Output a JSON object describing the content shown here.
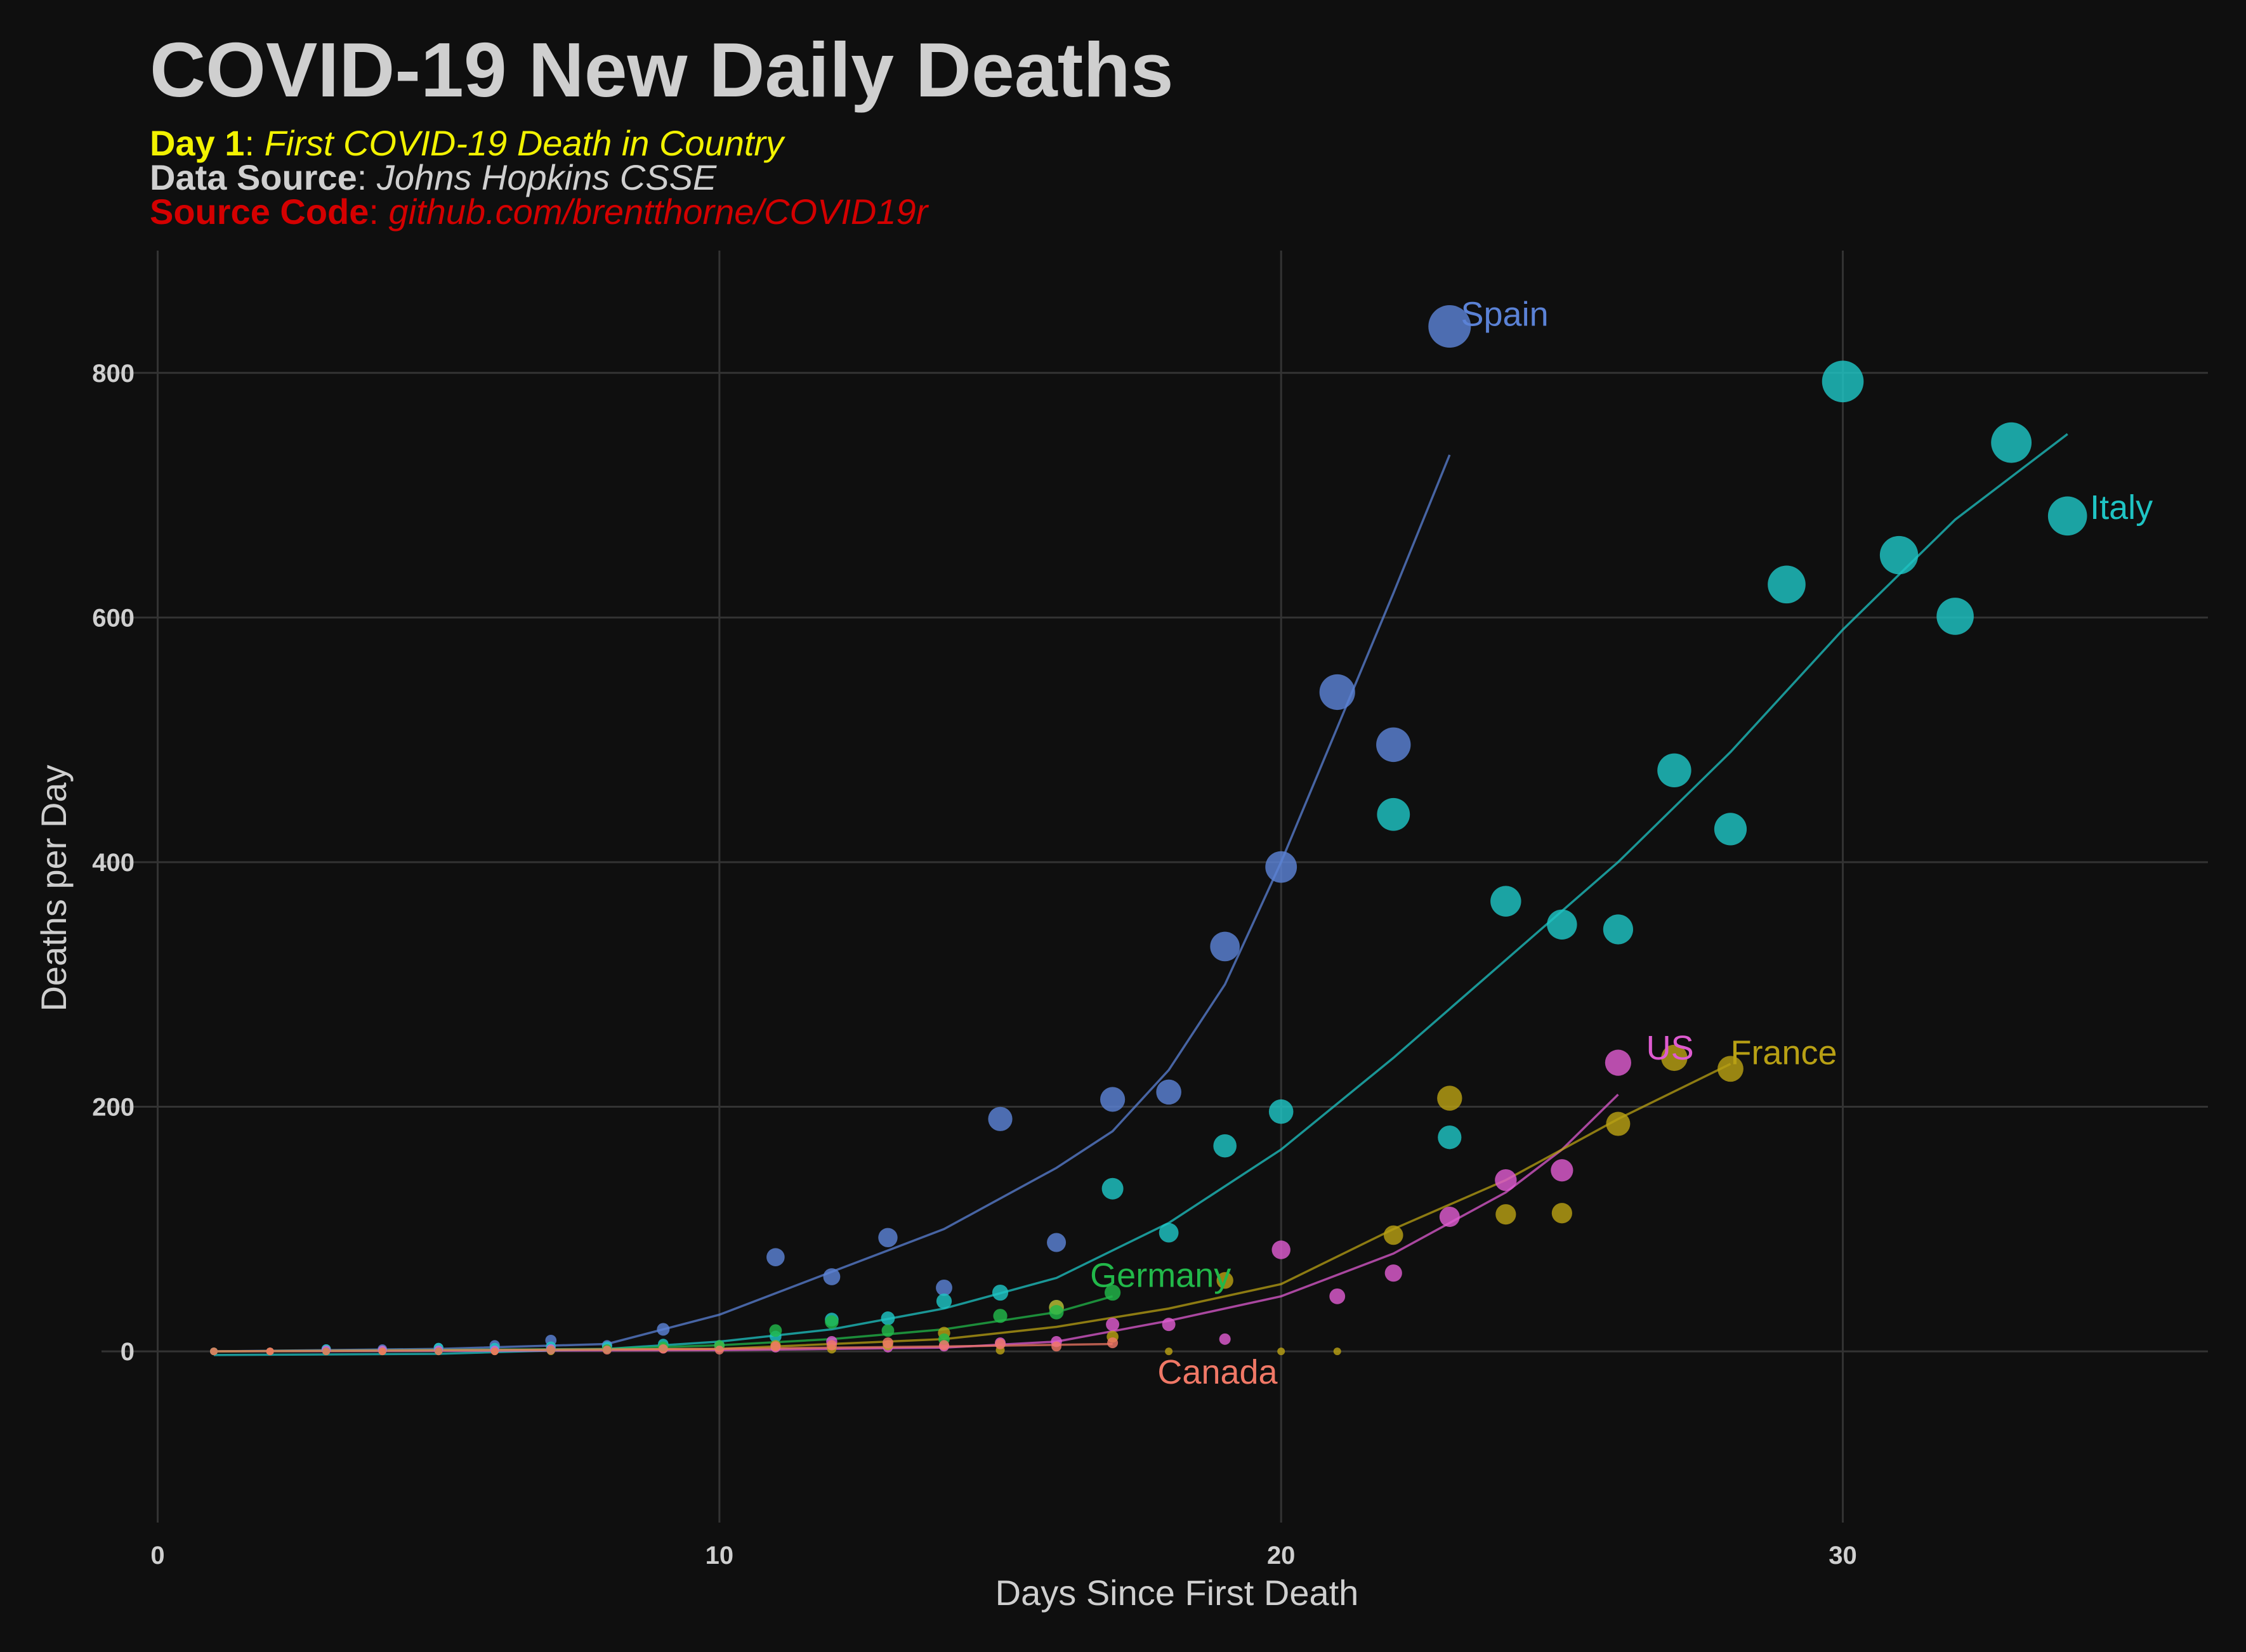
{
  "title": "COVID-19 New Daily Deaths",
  "subtitle": {
    "day1_label": "Day 1",
    "day1_text": "First COVID-19 Death in Country",
    "source_label": "Data Source",
    "source_text": "Johns Hopkins CSSE",
    "code_label": "Source Code",
    "code_text": "github.com/brentthorne/COVID19r"
  },
  "colors": {
    "background": "#0f0f0f",
    "grid": "#333333",
    "title": "#cfcfcf",
    "day1": "#f2f200",
    "code": "#d40000"
  },
  "chart_data": {
    "type": "scatter",
    "xlabel": "Days Since First Death",
    "ylabel": "Deaths per Day",
    "xlim": [
      -1,
      36.5
    ],
    "ylim": [
      -140,
      900
    ],
    "xticks": [
      0,
      10,
      20,
      30
    ],
    "yticks": [
      0,
      200,
      400,
      600,
      800
    ],
    "grid": true,
    "legend": "direct labels",
    "series": [
      {
        "name": "Spain",
        "color": "#5b82d6",
        "points": [
          [
            1,
            0
          ],
          [
            2,
            0
          ],
          [
            3,
            2
          ],
          [
            4,
            2
          ],
          [
            5,
            3
          ],
          [
            6,
            5
          ],
          [
            7,
            9
          ],
          [
            8,
            5
          ],
          [
            9,
            18
          ],
          [
            10,
            5
          ],
          [
            11,
            77
          ],
          [
            12,
            61
          ],
          [
            13,
            93
          ],
          [
            14,
            52
          ],
          [
            15,
            190
          ],
          [
            16,
            89
          ],
          [
            17,
            206
          ],
          [
            18,
            212
          ],
          [
            19,
            331
          ],
          [
            20,
            396
          ],
          [
            21,
            539
          ],
          [
            22,
            496
          ],
          [
            23,
            838
          ]
        ],
        "trend": [
          [
            1,
            0
          ],
          [
            5,
            2
          ],
          [
            8,
            6
          ],
          [
            10,
            30
          ],
          [
            12,
            65
          ],
          [
            14,
            100
          ],
          [
            16,
            150
          ],
          [
            17,
            180
          ],
          [
            18,
            230
          ],
          [
            19,
            300
          ],
          [
            20,
            400
          ],
          [
            21,
            510
          ],
          [
            22,
            620
          ],
          [
            23,
            733
          ]
        ],
        "label_at": [
          23.2,
          848
        ]
      },
      {
        "name": "Italy",
        "color": "#1fc4c4",
        "points": [
          [
            1,
            0
          ],
          [
            2,
            0
          ],
          [
            3,
            2
          ],
          [
            4,
            1
          ],
          [
            5,
            3
          ],
          [
            6,
            3
          ],
          [
            7,
            4
          ],
          [
            8,
            4
          ],
          [
            9,
            6
          ],
          [
            10,
            5
          ],
          [
            11,
            12
          ],
          [
            12,
            26
          ],
          [
            13,
            27
          ],
          [
            14,
            41
          ],
          [
            15,
            48
          ],
          [
            16,
            36
          ],
          [
            17,
            133
          ],
          [
            18,
            97
          ],
          [
            19,
            168
          ],
          [
            20,
            196
          ],
          [
            22,
            439
          ],
          [
            23,
            175
          ],
          [
            24,
            368
          ],
          [
            25,
            349
          ],
          [
            26,
            345
          ],
          [
            27,
            475
          ],
          [
            28,
            427
          ],
          [
            29,
            627
          ],
          [
            30,
            793
          ],
          [
            31,
            651
          ],
          [
            32,
            601
          ],
          [
            33,
            743
          ],
          [
            34,
            683
          ]
        ],
        "trend": [
          [
            1,
            -3
          ],
          [
            5,
            -2
          ],
          [
            8,
            2
          ],
          [
            10,
            8
          ],
          [
            12,
            18
          ],
          [
            14,
            35
          ],
          [
            16,
            60
          ],
          [
            18,
            105
          ],
          [
            20,
            165
          ],
          [
            22,
            240
          ],
          [
            24,
            320
          ],
          [
            26,
            400
          ],
          [
            28,
            490
          ],
          [
            30,
            590
          ],
          [
            32,
            680
          ],
          [
            34,
            750
          ]
        ],
        "label_at": [
          34.4,
          690
        ]
      },
      {
        "name": "US",
        "color": "#de5bd0",
        "points": [
          [
            1,
            0
          ],
          [
            2,
            0
          ],
          [
            3,
            1
          ],
          [
            4,
            1
          ],
          [
            5,
            1
          ],
          [
            6,
            1
          ],
          [
            7,
            2
          ],
          [
            8,
            2
          ],
          [
            9,
            2
          ],
          [
            10,
            3
          ],
          [
            11,
            3
          ],
          [
            12,
            8
          ],
          [
            13,
            3
          ],
          [
            14,
            4
          ],
          [
            15,
            7
          ],
          [
            16,
            8
          ],
          [
            17,
            22
          ],
          [
            18,
            22
          ],
          [
            19,
            10
          ],
          [
            20,
            83
          ],
          [
            21,
            45
          ],
          [
            22,
            64
          ],
          [
            23,
            110
          ],
          [
            24,
            140
          ],
          [
            25,
            148
          ],
          [
            26,
            236
          ]
        ],
        "trend": [
          [
            1,
            0
          ],
          [
            10,
            1
          ],
          [
            14,
            3
          ],
          [
            16,
            8
          ],
          [
            18,
            25
          ],
          [
            20,
            45
          ],
          [
            22,
            80
          ],
          [
            24,
            130
          ],
          [
            25,
            165
          ],
          [
            26,
            210
          ]
        ],
        "label_at": [
          26.5,
          248
        ]
      },
      {
        "name": "France",
        "color": "#b8a014",
        "points": [
          [
            1,
            0
          ],
          [
            2,
            0
          ],
          [
            3,
            0
          ],
          [
            4,
            0
          ],
          [
            5,
            0
          ],
          [
            6,
            0
          ],
          [
            7,
            0
          ],
          [
            8,
            2
          ],
          [
            9,
            3
          ],
          [
            10,
            4
          ],
          [
            11,
            5
          ],
          [
            12,
            2
          ],
          [
            13,
            5
          ],
          [
            14,
            15
          ],
          [
            15,
            1
          ],
          [
            16,
            36
          ],
          [
            17,
            12
          ],
          [
            18,
            0
          ],
          [
            19,
            58
          ],
          [
            20,
            0
          ],
          [
            21,
            0
          ],
          [
            22,
            95
          ],
          [
            23,
            207
          ],
          [
            24,
            112
          ],
          [
            25,
            113
          ],
          [
            26,
            186
          ],
          [
            27,
            240
          ],
          [
            28,
            231
          ]
        ],
        "trend": [
          [
            1,
            0
          ],
          [
            10,
            2
          ],
          [
            14,
            10
          ],
          [
            16,
            20
          ],
          [
            18,
            35
          ],
          [
            20,
            55
          ],
          [
            22,
            100
          ],
          [
            24,
            140
          ],
          [
            26,
            190
          ],
          [
            28,
            235
          ]
        ],
        "label_at": [
          28.0,
          244
        ]
      },
      {
        "name": "Germany",
        "color": "#22b84a",
        "points": [
          [
            1,
            0
          ],
          [
            3,
            0
          ],
          [
            5,
            0
          ],
          [
            7,
            1
          ],
          [
            8,
            2
          ],
          [
            9,
            4
          ],
          [
            10,
            5
          ],
          [
            11,
            17
          ],
          [
            12,
            24
          ],
          [
            13,
            17
          ],
          [
            14,
            10
          ],
          [
            15,
            29
          ],
          [
            16,
            32
          ],
          [
            17,
            48
          ]
        ],
        "trend": [
          [
            1,
            0
          ],
          [
            8,
            2
          ],
          [
            10,
            5
          ],
          [
            12,
            10
          ],
          [
            14,
            18
          ],
          [
            16,
            32
          ],
          [
            17,
            45
          ]
        ],
        "label_at": [
          16.6,
          62
        ]
      },
      {
        "name": "Canada",
        "color": "#f07866",
        "points": [
          [
            1,
            0
          ],
          [
            2,
            0
          ],
          [
            3,
            0
          ],
          [
            4,
            0
          ],
          [
            5,
            0
          ],
          [
            6,
            0
          ],
          [
            7,
            1
          ],
          [
            8,
            1
          ],
          [
            9,
            2
          ],
          [
            10,
            1
          ],
          [
            11,
            4
          ],
          [
            12,
            5
          ],
          [
            13,
            7
          ],
          [
            14,
            5
          ],
          [
            15,
            6
          ],
          [
            16,
            4
          ],
          [
            17,
            7
          ]
        ],
        "trend": [
          [
            1,
            0
          ],
          [
            10,
            2
          ],
          [
            14,
            4
          ],
          [
            17,
            6
          ]
        ],
        "label_at": [
          17.8,
          -17
        ]
      }
    ]
  }
}
